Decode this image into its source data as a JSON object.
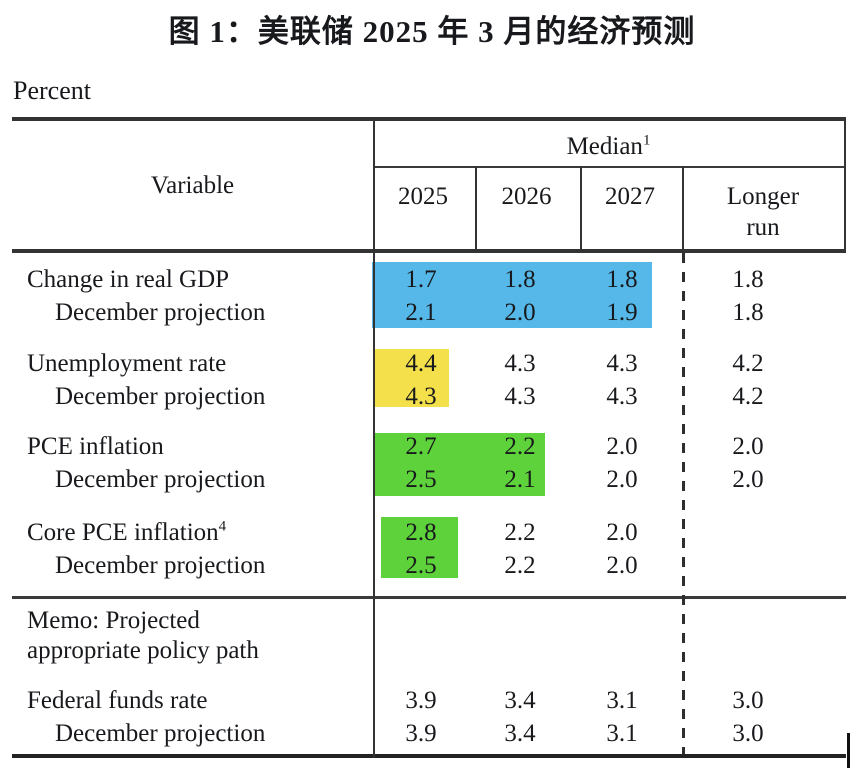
{
  "title": "图 1：美联储 2025 年 3 月的经济预测",
  "unit_label": "Percent",
  "colors": {
    "highlight_blue": "#55b8e8",
    "highlight_yellow": "#f4e04a",
    "highlight_green": "#5ed23a"
  },
  "table": {
    "header": {
      "variable": "Variable",
      "median": "Median",
      "median_sup": "1",
      "years": [
        "2025",
        "2026",
        "2027"
      ],
      "longer_run": "Longer run"
    },
    "rows": [
      {
        "label": "Change in real GDP",
        "values": [
          "1.7",
          "1.8",
          "1.8",
          "1.8"
        ],
        "highlight": "blue 2025-2027"
      },
      {
        "label": "December projection",
        "values": [
          "2.1",
          "2.0",
          "1.9",
          "1.8"
        ],
        "highlight": "blue 2025-2027"
      },
      {
        "label": "Unemployment rate",
        "values": [
          "4.4",
          "4.3",
          "4.3",
          "4.2"
        ],
        "highlight": "yellow 2025"
      },
      {
        "label": "December projection",
        "values": [
          "4.3",
          "4.3",
          "4.3",
          "4.2"
        ],
        "highlight": "yellow 2025"
      },
      {
        "label": "PCE inflation",
        "values": [
          "2.7",
          "2.2",
          "2.0",
          "2.0"
        ],
        "highlight": "green 2025-2026"
      },
      {
        "label": "December projection",
        "values": [
          "2.5",
          "2.1",
          "2.0",
          "2.0"
        ],
        "highlight": "green 2025-2026"
      },
      {
        "label": "Core PCE inflation",
        "label_sup": "4",
        "values": [
          "2.8",
          "2.2",
          "2.0",
          ""
        ],
        "highlight": "green 2025"
      },
      {
        "label": "December projection",
        "values": [
          "2.5",
          "2.2",
          "2.0",
          ""
        ],
        "highlight": "green 2025"
      },
      {
        "label": "Federal funds rate",
        "values": [
          "3.9",
          "3.4",
          "3.1",
          "3.0"
        ],
        "highlight": ""
      },
      {
        "label": "December projection",
        "values": [
          "3.9",
          "3.4",
          "3.1",
          "3.0"
        ],
        "highlight": ""
      }
    ],
    "memo_label": "Memo: Projected appropriate policy path"
  }
}
